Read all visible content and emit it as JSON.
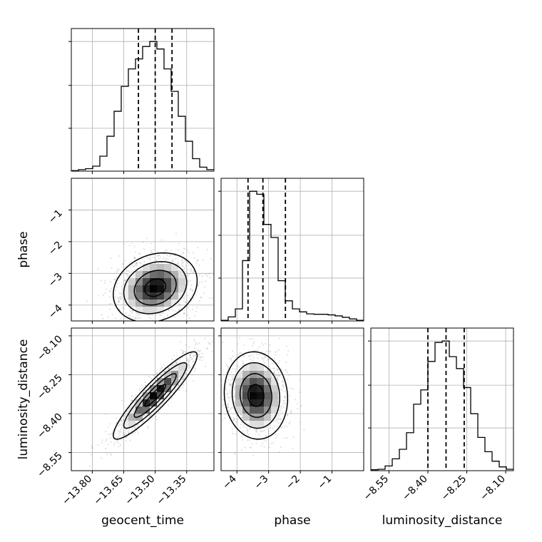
{
  "colors": {
    "background": "#ffffff",
    "ink": "#000000",
    "grid": "#b0b0b0",
    "scatter_points": "#808080",
    "density_dark": "#000000",
    "density_light": "#f2f2f2"
  },
  "chart_data": [
    {
      "type": "histogram",
      "panel": "geocent_time (1D)",
      "xlim": [
        -13.9,
        -13.22
      ],
      "bin_edges": [
        -13.9,
        -13.866,
        -13.832,
        -13.798,
        -13.764,
        -13.73,
        -13.696,
        -13.662,
        -13.628,
        -13.594,
        -13.56,
        -13.526,
        -13.492,
        -13.458,
        -13.424,
        -13.39,
        -13.356,
        -13.322,
        -13.288,
        -13.254,
        -13.22
      ],
      "counts": [
        1,
        3,
        5,
        10,
        30,
        70,
        120,
        170,
        205,
        225,
        250,
        260,
        245,
        205,
        160,
        110,
        60,
        25,
        8,
        3
      ],
      "quantile_lines": [
        -13.58,
        -13.5,
        -13.42
      ],
      "grid": true
    },
    {
      "type": "histogram",
      "panel": "phase (1D)",
      "xlim": [
        -4.5,
        0.0
      ],
      "bin_edges": [
        -4.5,
        -4.275,
        -4.05,
        -3.825,
        -3.6,
        -3.375,
        -3.15,
        -2.925,
        -2.7,
        -2.475,
        -2.25,
        -2.025,
        -1.8,
        -1.575,
        -1.35,
        -1.125,
        -0.9,
        -0.675,
        -0.45,
        -0.225,
        0.0
      ],
      "counts": [
        3,
        20,
        60,
        300,
        645,
        630,
        480,
        415,
        200,
        100,
        60,
        45,
        35,
        33,
        33,
        30,
        25,
        18,
        10,
        3
      ],
      "quantile_lines": [
        -3.65,
        -3.18,
        -2.47
      ],
      "grid": true
    },
    {
      "type": "histogram",
      "panel": "luminosity_distance (1D)",
      "xlim": [
        -8.62,
        -8.07
      ],
      "bin_edges": [
        -8.62,
        -8.5925,
        -8.565,
        -8.5375,
        -8.51,
        -8.4825,
        -8.455,
        -8.4275,
        -8.4,
        -8.3725,
        -8.345,
        -8.3175,
        -8.29,
        -8.2625,
        -8.235,
        -8.2075,
        -8.18,
        -8.1525,
        -8.125,
        -8.0975,
        -8.07
      ],
      "counts": [
        2,
        3,
        10,
        25,
        45,
        80,
        140,
        170,
        230,
        270,
        273,
        240,
        215,
        175,
        120,
        70,
        40,
        20,
        8,
        3
      ],
      "quantile_lines": [
        -8.4,
        -8.33,
        -8.26
      ],
      "grid": true
    },
    {
      "type": "scatter-contour",
      "panel": "phase vs geocent_time",
      "x": "geocent_time",
      "y": "phase",
      "xlim": [
        -13.9,
        -13.22
      ],
      "ylim": [
        -4.5,
        0.0
      ],
      "cov": [
        [
          0.01,
          0.0108
        ],
        [
          0.0108,
          0.3
        ]
      ],
      "mode": [
        -13.5,
        -3.45
      ],
      "grid": true
    },
    {
      "type": "scatter-contour",
      "panel": "luminosity_distance vs geocent_time",
      "x": "geocent_time",
      "y": "luminosity_distance",
      "xlim": [
        -13.9,
        -13.22
      ],
      "ylim": [
        -8.62,
        -8.07
      ],
      "cov": [
        [
          0.01,
          0.0077
        ],
        [
          0.0077,
          0.0071
        ]
      ],
      "mode": [
        -13.5,
        -8.33
      ],
      "grid": true
    },
    {
      "type": "scatter-contour",
      "panel": "luminosity_distance vs phase",
      "x": "phase",
      "y": "luminosity_distance",
      "xlim": [
        -4.5,
        0.0
      ],
      "ylim": [
        -8.62,
        -8.07
      ],
      "cov": [
        [
          0.25,
          -0.003
        ],
        [
          -0.003,
          0.0071
        ]
      ],
      "mode": [
        -3.4,
        -8.33
      ],
      "grid": true
    }
  ],
  "axes": {
    "geocent_time": {
      "label": "geocent_time",
      "ticks": [
        -13.8,
        -13.65,
        -13.5,
        -13.35
      ],
      "tick_labels": [
        "−13.80",
        "−13.65",
        "−13.50",
        "−13.35"
      ]
    },
    "phase": {
      "label": "phase",
      "ticks": [
        -4,
        -3,
        -2,
        -1
      ],
      "tick_labels": [
        "−4",
        "−3",
        "−2",
        "−1"
      ]
    },
    "luminosity_distance": {
      "label": "luminosity_distance",
      "ticks": [
        -8.55,
        -8.4,
        -8.25,
        -8.1
      ],
      "tick_labels": [
        "−8.55",
        "−8.40",
        "−8.25",
        "−8.10"
      ]
    }
  }
}
